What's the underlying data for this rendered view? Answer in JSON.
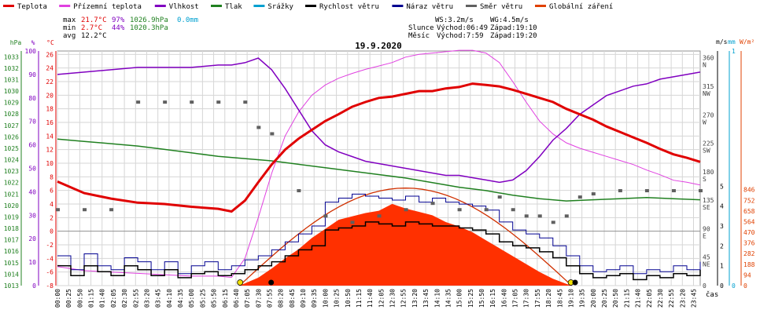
{
  "legend": [
    {
      "label": "Teplota",
      "color": "#e00000"
    },
    {
      "label": "Přízemní teplota",
      "color": "#e040e0"
    },
    {
      "label": "Vlhkost",
      "color": "#8000c0"
    },
    {
      "label": "Tlak",
      "color": "#208020"
    },
    {
      "label": "Srážky",
      "color": "#00a0d0"
    },
    {
      "label": "Rychlost větru",
      "color": "#000000"
    },
    {
      "label": "Náraz větru",
      "color": "#000090"
    },
    {
      "label": "Směr větru",
      "color": "#606060"
    },
    {
      "label": "Globální záření",
      "color": "#e04000"
    }
  ],
  "stats": {
    "max_label": "max",
    "max_temp": "21.7°C",
    "max_hum": "97%",
    "max_press": "1026.9hPa",
    "max_rain": "0.0mm",
    "min_label": "min",
    "min_temp": "2.7°C",
    "min_hum": "44%",
    "min_press": "1020.3hPa",
    "avg_label": "avg",
    "avg_temp": "12.2°C"
  },
  "info": {
    "ws": "WS:3.2m/s",
    "wg": "WG:4.5m/s",
    "sun": "Slunce",
    "sun_rise": "Východ:06:49",
    "sun_set": "Západ:19:10",
    "moon": "Měsíc",
    "moon_rise": "Východ:7:59",
    "moon_set": "Západ:19:20"
  },
  "chart_data": {
    "type": "line",
    "title": "19.9.2020",
    "xlabel": "čas",
    "x_ticks": [
      "00:00",
      "00:25",
      "00:50",
      "01:15",
      "01:40",
      "02:05",
      "02:30",
      "02:55",
      "03:20",
      "03:45",
      "04:10",
      "04:35",
      "05:00",
      "05:25",
      "05:50",
      "06:15",
      "06:40",
      "07:05",
      "07:30",
      "07:55",
      "08:20",
      "08:45",
      "09:10",
      "09:35",
      "10:00",
      "10:25",
      "10:50",
      "11:15",
      "11:40",
      "12:05",
      "12:30",
      "12:55",
      "13:20",
      "13:45",
      "14:10",
      "14:35",
      "15:00",
      "15:25",
      "15:50",
      "16:15",
      "16:40",
      "17:05",
      "17:30",
      "17:55",
      "18:20",
      "18:45",
      "19:10",
      "19:35",
      "20:00",
      "20:25",
      "20:50",
      "21:15",
      "21:40",
      "22:05",
      "22:30",
      "22:55",
      "23:20",
      "23:45"
    ],
    "axes": {
      "hpa": {
        "label": "hPa",
        "ticks": [
          "1013",
          "1014",
          "1015",
          "1016",
          "1017",
          "1018",
          "1019",
          "1020",
          "1021",
          "1022",
          "1023",
          "1024",
          "1025",
          "1026",
          "1027",
          "1028",
          "1029",
          "1030",
          "1031",
          "1032",
          "1033"
        ],
        "color": "#208020"
      },
      "pct": {
        "label": "%",
        "ticks": [
          "0",
          "10",
          "20",
          "30",
          "40",
          "50",
          "60",
          "70",
          "80",
          "90",
          "100"
        ],
        "color": "#8000c0"
      },
      "temp": {
        "label": "°C",
        "ticks": [
          "-8",
          "-6",
          "-4",
          "-2",
          "0",
          "2",
          "4",
          "6",
          "8",
          "10",
          "12",
          "14",
          "16",
          "18",
          "20",
          "22",
          "24",
          "26"
        ],
        "color": "#e00000"
      },
      "dir": {
        "ticks": [
          "0",
          "45\nNE",
          "90\nE",
          "135\nSE",
          "180\nS",
          "225\nSW",
          "270\nW",
          "315\nNW",
          "360\nN"
        ],
        "color": "#404040"
      },
      "ms": {
        "label": "m/s",
        "ticks": [
          "0",
          "1",
          "2",
          "3",
          "4",
          "5"
        ],
        "color": "#000000"
      },
      "mm": {
        "label": "mm",
        "ticks": [
          "0",
          "1"
        ],
        "color": "#00a0d0"
      },
      "wm": {
        "label": "W/m²",
        "ticks": [
          "0",
          "94",
          "188",
          "282",
          "376",
          "470",
          "564",
          "658",
          "752",
          "846"
        ],
        "color": "#e04000"
      }
    },
    "series": [
      {
        "name": "Teplota",
        "unit": "°C",
        "x": [
          0,
          1,
          2,
          3,
          4,
          5,
          6,
          6.5,
          7,
          7.5,
          8,
          8.5,
          9,
          9.5,
          10,
          10.5,
          11,
          11.5,
          12,
          12.5,
          13,
          13.5,
          14,
          14.5,
          15,
          15.5,
          16,
          16.5,
          17,
          17.5,
          18,
          18.5,
          19,
          19.5,
          20,
          20.5,
          21,
          21.5,
          22,
          22.5,
          23,
          23.5,
          24
        ],
        "values": [
          7.3,
          5.6,
          4.8,
          4.2,
          4.0,
          3.6,
          3.3,
          2.9,
          4.5,
          7.2,
          9.8,
          12.0,
          13.6,
          14.9,
          16.2,
          17.2,
          18.3,
          19.0,
          19.6,
          19.8,
          20.2,
          20.6,
          20.6,
          21.0,
          21.2,
          21.7,
          21.5,
          21.3,
          20.8,
          20.2,
          19.6,
          19.0,
          18.0,
          17.2,
          16.4,
          15.4,
          14.6,
          13.8,
          13.0,
          12.1,
          11.3,
          10.8,
          10.2
        ]
      },
      {
        "name": "Přízemní teplota",
        "unit": "°C",
        "x": [
          0,
          1,
          2,
          3,
          4,
          5,
          6,
          6.5,
          7,
          7.5,
          8,
          8.5,
          9,
          9.5,
          10,
          10.5,
          11,
          11.5,
          12,
          12.5,
          13,
          13.5,
          14,
          14.5,
          15,
          15.5,
          16,
          16.5,
          17,
          17.5,
          18,
          18.5,
          19,
          19.5,
          20,
          20.5,
          21,
          21.5,
          22,
          22.5,
          23,
          23.5,
          24
        ],
        "values": [
          -5.2,
          -5.8,
          -6.0,
          -6.2,
          -6.4,
          -6.6,
          -6.6,
          -6.8,
          -4.0,
          2.0,
          8.5,
          14.0,
          17.5,
          20.0,
          21.5,
          22.5,
          23.2,
          23.8,
          24.3,
          24.8,
          25.6,
          26.0,
          26.2,
          26.4,
          26.6,
          26.6,
          26.2,
          24.8,
          22.0,
          19.0,
          16.2,
          14.3,
          13.0,
          12.2,
          11.6,
          11.0,
          10.4,
          9.8,
          9.0,
          8.3,
          7.5,
          7.2,
          6.8
        ]
      },
      {
        "name": "Vlhkost",
        "unit": "%",
        "x": [
          0,
          1,
          2,
          3,
          4,
          5,
          6,
          6.5,
          7,
          7.5,
          8,
          8.5,
          9,
          9.5,
          10,
          10.5,
          11,
          11.5,
          12,
          12.5,
          13,
          13.5,
          14,
          14.5,
          15,
          15.5,
          16,
          16.5,
          17,
          17.5,
          18,
          18.5,
          19,
          19.5,
          20,
          20.5,
          21,
          21.5,
          22,
          22.5,
          23,
          23.5,
          24
        ],
        "values": [
          90,
          91,
          92,
          93,
          93,
          93,
          94,
          94,
          95,
          97,
          92,
          84,
          75,
          66,
          60,
          57,
          55,
          53,
          52,
          51,
          50,
          49,
          48,
          47,
          47,
          46,
          45,
          44,
          45,
          49,
          55,
          62,
          67,
          73,
          77,
          81,
          83,
          85,
          86,
          88,
          89,
          90,
          91
        ]
      },
      {
        "name": "Tlak",
        "unit": "hPa",
        "x": [
          0,
          1,
          2,
          3,
          4,
          5,
          6,
          7,
          8,
          9,
          10,
          11,
          12,
          13,
          14,
          15,
          16,
          17,
          18,
          19,
          20,
          21,
          22,
          23,
          24
        ],
        "values": [
          1025.8,
          1025.6,
          1025.4,
          1025.2,
          1024.9,
          1024.6,
          1024.3,
          1024.1,
          1023.9,
          1023.6,
          1023.3,
          1023.0,
          1022.7,
          1022.4,
          1022.0,
          1021.6,
          1021.3,
          1020.9,
          1020.6,
          1020.4,
          1020.5,
          1020.6,
          1020.7,
          1020.6,
          1020.5
        ]
      },
      {
        "name": "Rychlost větru",
        "unit": "m/s",
        "x": [
          0,
          0.5,
          1,
          1.5,
          2,
          2.5,
          3,
          3.5,
          4,
          4.5,
          5,
          5.5,
          6,
          6.5,
          7,
          7.5,
          8,
          8.5,
          9,
          9.5,
          10,
          10.5,
          11,
          11.5,
          12,
          12.5,
          13,
          13.5,
          14,
          14.5,
          15,
          15.5,
          16,
          16.5,
          17,
          17.5,
          18,
          18.5,
          19,
          19.5,
          20,
          20.5,
          21,
          21.5,
          22,
          22.5,
          23,
          23.5,
          24
        ],
        "values": [
          1.0,
          0.5,
          1.0,
          0.7,
          0.5,
          1.0,
          0.8,
          0.5,
          0.8,
          0.4,
          0.6,
          0.7,
          0.5,
          0.6,
          0.8,
          1.0,
          1.2,
          1.5,
          1.8,
          2.0,
          2.8,
          2.9,
          3.0,
          3.2,
          3.1,
          3.0,
          3.2,
          3.1,
          3.0,
          3.0,
          2.9,
          2.8,
          2.6,
          2.2,
          2.0,
          1.9,
          1.7,
          1.4,
          1.0,
          0.6,
          0.4,
          0.5,
          0.6,
          0.3,
          0.5,
          0.4,
          0.6,
          0.5,
          0.8
        ]
      },
      {
        "name": "Náraz větru",
        "unit": "m/s",
        "x": [
          0,
          0.5,
          1,
          1.5,
          2,
          2.5,
          3,
          3.5,
          4,
          4.5,
          5,
          5.5,
          6,
          6.5,
          7,
          7.5,
          8,
          8.5,
          9,
          9.5,
          10,
          10.5,
          11,
          11.5,
          12,
          12.5,
          13,
          13.5,
          14,
          14.5,
          15,
          15.5,
          16,
          16.5,
          17,
          17.5,
          18,
          18.5,
          19,
          19.5,
          20,
          20.5,
          21,
          21.5,
          22,
          22.5,
          23,
          23.5,
          24
        ],
        "values": [
          1.5,
          0.8,
          1.6,
          1.0,
          0.8,
          1.4,
          1.2,
          0.8,
          1.2,
          0.6,
          1.0,
          1.2,
          0.8,
          1.0,
          1.3,
          1.5,
          1.8,
          2.2,
          2.6,
          3.0,
          4.2,
          4.4,
          4.6,
          4.5,
          4.4,
          4.3,
          4.5,
          4.2,
          4.4,
          4.2,
          4.1,
          4.0,
          3.8,
          3.2,
          2.8,
          2.6,
          2.4,
          2.0,
          1.5,
          1.0,
          0.7,
          0.8,
          1.0,
          0.6,
          0.8,
          0.7,
          1.0,
          0.8,
          1.2
        ]
      },
      {
        "name": "Směr větru",
        "unit": "°",
        "x": [
          0,
          1,
          2,
          3,
          4,
          5,
          6,
          7,
          7.5,
          8,
          9,
          10,
          11,
          12,
          13,
          14,
          15,
          16,
          16.5,
          17,
          17.5,
          18,
          18.5,
          19,
          19.5,
          20,
          21,
          22,
          23,
          24
        ],
        "values": [
          120,
          120,
          120,
          290,
          290,
          290,
          290,
          290,
          250,
          240,
          150,
          110,
          100,
          110,
          120,
          130,
          120,
          120,
          140,
          120,
          110,
          110,
          100,
          110,
          140,
          145,
          150,
          150,
          150,
          150
        ]
      },
      {
        "name": "Globální záření",
        "unit": "W/m²",
        "x": [
          6.8,
          7.5,
          8,
          8.5,
          9,
          9.5,
          10,
          10.5,
          11,
          11.5,
          12,
          12.5,
          13,
          13.5,
          14,
          14.5,
          15,
          15.5,
          16,
          16.5,
          17,
          17.5,
          18,
          18.5,
          19,
          19.2
        ],
        "values": [
          0,
          70,
          150,
          240,
          320,
          420,
          500,
          580,
          610,
          640,
          660,
          720,
          680,
          650,
          620,
          560,
          520,
          470,
          400,
          330,
          260,
          190,
          120,
          60,
          15,
          0
        ]
      }
    ]
  }
}
